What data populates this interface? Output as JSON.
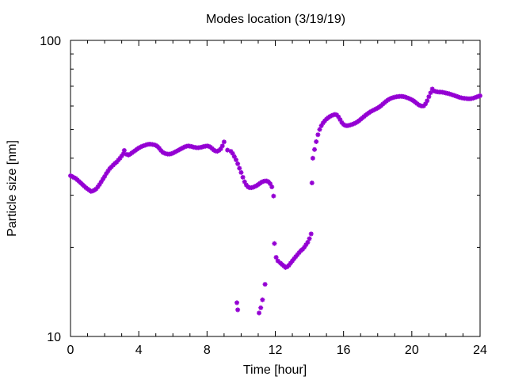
{
  "chart_data": {
    "type": "scatter",
    "title": "Modes location (3/19/19)",
    "xlabel": "Time [hour]",
    "ylabel": "Particle size [nm]",
    "xlim": [
      0,
      24
    ],
    "ylim": [
      10,
      100
    ],
    "yscale": "log",
    "xticks": [
      0,
      4,
      8,
      12,
      16,
      20,
      24
    ],
    "yticks": [
      10,
      100
    ],
    "grid": false,
    "legend": "none",
    "marker_color": "#9400d3",
    "points": [
      [
        0.0,
        34.9
      ],
      [
        0.1,
        34.7
      ],
      [
        0.2,
        34.4
      ],
      [
        0.3,
        34.2
      ],
      [
        0.4,
        33.8
      ],
      [
        0.5,
        33.4
      ],
      [
        0.6,
        33.0
      ],
      [
        0.7,
        32.6
      ],
      [
        0.8,
        32.2
      ],
      [
        0.9,
        31.8
      ],
      [
        1.0,
        31.5
      ],
      [
        1.1,
        31.2
      ],
      [
        1.2,
        30.9
      ],
      [
        1.3,
        31.0
      ],
      [
        1.4,
        31.2
      ],
      [
        1.5,
        31.5
      ],
      [
        1.6,
        32.0
      ],
      [
        1.7,
        32.6
      ],
      [
        1.8,
        33.3
      ],
      [
        1.9,
        34.0
      ],
      [
        2.0,
        34.7
      ],
      [
        2.1,
        35.5
      ],
      [
        2.2,
        36.2
      ],
      [
        2.3,
        36.9
      ],
      [
        2.4,
        37.4
      ],
      [
        2.5,
        37.9
      ],
      [
        2.6,
        38.4
      ],
      [
        2.7,
        38.8
      ],
      [
        2.8,
        39.4
      ],
      [
        2.9,
        40.0
      ],
      [
        3.0,
        40.7
      ],
      [
        3.1,
        41.4
      ],
      [
        3.15,
        42.5
      ],
      [
        3.3,
        41.2
      ],
      [
        3.4,
        41.0
      ],
      [
        3.5,
        41.3
      ],
      [
        3.6,
        41.7
      ],
      [
        3.7,
        42.1
      ],
      [
        3.8,
        42.5
      ],
      [
        3.9,
        42.9
      ],
      [
        4.0,
        43.3
      ],
      [
        4.1,
        43.6
      ],
      [
        4.2,
        43.9
      ],
      [
        4.3,
        44.1
      ],
      [
        4.4,
        44.3
      ],
      [
        4.5,
        44.5
      ],
      [
        4.6,
        44.6
      ],
      [
        4.7,
        44.6
      ],
      [
        4.8,
        44.5
      ],
      [
        4.9,
        44.4
      ],
      [
        5.0,
        44.2
      ],
      [
        5.1,
        43.8
      ],
      [
        5.2,
        43.2
      ],
      [
        5.3,
        42.5
      ],
      [
        5.4,
        41.9
      ],
      [
        5.5,
        41.6
      ],
      [
        5.6,
        41.4
      ],
      [
        5.7,
        41.3
      ],
      [
        5.8,
        41.3
      ],
      [
        5.9,
        41.4
      ],
      [
        6.0,
        41.6
      ],
      [
        6.1,
        41.9
      ],
      [
        6.2,
        42.2
      ],
      [
        6.3,
        42.5
      ],
      [
        6.4,
        42.8
      ],
      [
        6.5,
        43.1
      ],
      [
        6.6,
        43.4
      ],
      [
        6.7,
        43.7
      ],
      [
        6.8,
        43.9
      ],
      [
        6.9,
        44.0
      ],
      [
        7.0,
        43.9
      ],
      [
        7.1,
        43.8
      ],
      [
        7.2,
        43.6
      ],
      [
        7.3,
        43.5
      ],
      [
        7.4,
        43.4
      ],
      [
        7.5,
        43.4
      ],
      [
        7.6,
        43.5
      ],
      [
        7.7,
        43.6
      ],
      [
        7.8,
        43.8
      ],
      [
        7.9,
        43.9
      ],
      [
        8.0,
        44.0
      ],
      [
        8.1,
        43.9
      ],
      [
        8.2,
        43.6
      ],
      [
        8.3,
        43.1
      ],
      [
        8.4,
        42.6
      ],
      [
        8.5,
        42.3
      ],
      [
        8.6,
        42.2
      ],
      [
        8.7,
        42.5
      ],
      [
        8.8,
        43.0
      ],
      [
        8.9,
        44.0
      ],
      [
        9.0,
        45.4
      ],
      [
        9.2,
        42.6
      ],
      [
        9.4,
        42.2
      ],
      [
        9.5,
        41.5
      ],
      [
        9.6,
        40.5
      ],
      [
        9.7,
        39.5
      ],
      [
        9.8,
        38.3
      ],
      [
        9.9,
        37.0
      ],
      [
        10.0,
        35.8
      ],
      [
        10.1,
        34.5
      ],
      [
        10.2,
        33.3
      ],
      [
        10.3,
        32.5
      ],
      [
        10.4,
        32.0
      ],
      [
        10.5,
        31.8
      ],
      [
        10.6,
        31.8
      ],
      [
        10.7,
        31.9
      ],
      [
        10.8,
        32.1
      ],
      [
        10.9,
        32.3
      ],
      [
        11.0,
        32.6
      ],
      [
        11.1,
        32.9
      ],
      [
        11.2,
        33.2
      ],
      [
        11.3,
        33.4
      ],
      [
        11.4,
        33.5
      ],
      [
        11.5,
        33.5
      ],
      [
        11.6,
        33.3
      ],
      [
        11.7,
        32.8
      ],
      [
        11.8,
        32.0
      ],
      [
        11.9,
        29.8
      ],
      [
        11.95,
        20.6
      ],
      [
        12.05,
        18.5
      ],
      [
        12.15,
        18.0
      ],
      [
        12.3,
        17.7
      ],
      [
        12.4,
        17.5
      ],
      [
        12.5,
        17.3
      ],
      [
        12.6,
        17.1
      ],
      [
        12.7,
        17.2
      ],
      [
        12.8,
        17.4
      ],
      [
        12.9,
        17.7
      ],
      [
        13.0,
        18.0
      ],
      [
        13.1,
        18.3
      ],
      [
        13.2,
        18.6
      ],
      [
        13.3,
        18.9
      ],
      [
        13.4,
        19.2
      ],
      [
        13.5,
        19.5
      ],
      [
        13.6,
        19.7
      ],
      [
        13.7,
        20.0
      ],
      [
        13.8,
        20.4
      ],
      [
        13.9,
        20.8
      ],
      [
        14.0,
        21.4
      ],
      [
        14.1,
        22.2
      ],
      [
        14.15,
        33.0
      ],
      [
        14.2,
        40.0
      ],
      [
        14.3,
        42.8
      ],
      [
        14.4,
        45.5
      ],
      [
        14.5,
        48.0
      ],
      [
        14.6,
        50.0
      ],
      [
        14.7,
        51.5
      ],
      [
        14.8,
        52.6
      ],
      [
        14.9,
        53.5
      ],
      [
        15.0,
        54.2
      ],
      [
        15.1,
        54.8
      ],
      [
        15.2,
        55.3
      ],
      [
        15.3,
        55.7
      ],
      [
        15.4,
        56.0
      ],
      [
        15.5,
        56.2
      ],
      [
        15.6,
        56.0
      ],
      [
        15.7,
        55.2
      ],
      [
        15.8,
        54.0
      ],
      [
        15.9,
        52.8
      ],
      [
        16.0,
        52.0
      ],
      [
        16.1,
        51.6
      ],
      [
        16.2,
        51.5
      ],
      [
        16.3,
        51.6
      ],
      [
        16.4,
        51.8
      ],
      [
        16.5,
        52.0
      ],
      [
        16.6,
        52.3
      ],
      [
        16.7,
        52.6
      ],
      [
        16.8,
        53.0
      ],
      [
        16.9,
        53.5
      ],
      [
        17.0,
        54.1
      ],
      [
        17.1,
        54.7
      ],
      [
        17.2,
        55.3
      ],
      [
        17.3,
        55.9
      ],
      [
        17.4,
        56.5
      ],
      [
        17.5,
        57.0
      ],
      [
        17.6,
        57.5
      ],
      [
        17.7,
        57.9
      ],
      [
        17.8,
        58.3
      ],
      [
        17.9,
        58.7
      ],
      [
        18.0,
        59.1
      ],
      [
        18.1,
        59.6
      ],
      [
        18.2,
        60.2
      ],
      [
        18.3,
        60.9
      ],
      [
        18.4,
        61.6
      ],
      [
        18.5,
        62.3
      ],
      [
        18.6,
        62.9
      ],
      [
        18.7,
        63.4
      ],
      [
        18.8,
        63.8
      ],
      [
        18.9,
        64.1
      ],
      [
        19.0,
        64.3
      ],
      [
        19.1,
        64.5
      ],
      [
        19.2,
        64.6
      ],
      [
        19.3,
        64.7
      ],
      [
        19.4,
        64.7
      ],
      [
        19.5,
        64.6
      ],
      [
        19.6,
        64.4
      ],
      [
        19.7,
        64.1
      ],
      [
        19.8,
        63.8
      ],
      [
        19.9,
        63.4
      ],
      [
        20.0,
        63.0
      ],
      [
        20.1,
        62.5
      ],
      [
        20.2,
        61.9
      ],
      [
        20.3,
        61.2
      ],
      [
        20.4,
        60.6
      ],
      [
        20.5,
        60.2
      ],
      [
        20.6,
        60.0
      ],
      [
        20.7,
        60.1
      ],
      [
        20.8,
        61.0
      ],
      [
        20.9,
        62.5
      ],
      [
        21.0,
        64.5
      ],
      [
        21.1,
        66.5
      ],
      [
        21.2,
        68.5
      ],
      [
        21.3,
        67.5
      ],
      [
        21.4,
        67.2
      ],
      [
        21.5,
        67.0
      ],
      [
        21.6,
        66.9
      ],
      [
        21.7,
        66.9
      ],
      [
        21.8,
        66.8
      ],
      [
        21.9,
        66.6
      ],
      [
        22.0,
        66.4
      ],
      [
        22.1,
        66.2
      ],
      [
        22.2,
        66.0
      ],
      [
        22.3,
        65.7
      ],
      [
        22.4,
        65.4
      ],
      [
        22.5,
        65.1
      ],
      [
        22.6,
        64.8
      ],
      [
        22.7,
        64.5
      ],
      [
        22.8,
        64.2
      ],
      [
        22.9,
        64.0
      ],
      [
        23.0,
        63.8
      ],
      [
        23.1,
        63.7
      ],
      [
        23.2,
        63.6
      ],
      [
        23.3,
        63.5
      ],
      [
        23.4,
        63.5
      ],
      [
        23.5,
        63.6
      ],
      [
        23.6,
        63.8
      ],
      [
        23.7,
        64.1
      ],
      [
        23.8,
        64.4
      ],
      [
        23.9,
        64.7
      ],
      [
        24.0,
        65.0
      ],
      [
        9.75,
        13.0
      ],
      [
        9.8,
        12.3
      ],
      [
        11.05,
        12.0
      ],
      [
        11.15,
        12.5
      ],
      [
        11.25,
        13.3
      ],
      [
        11.4,
        15.0
      ]
    ]
  }
}
